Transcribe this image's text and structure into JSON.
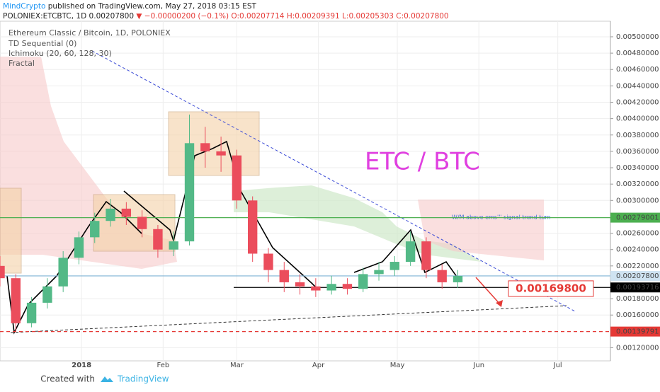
{
  "header": {
    "author": "MindCrypto",
    "published": "published on TradingView.com, May 27, 2018 03:15 EST",
    "symbol": "POLONIEX:ETCBTC, 1D",
    "price": "0.00207800",
    "change": "▼ −0.00000200 (−0.1%)",
    "ohlc": [
      "O:0.00207714",
      "H:0.00209391",
      "L:0.00205303",
      "C:0.00207800"
    ]
  },
  "footer": {
    "created": "Created with",
    "brand": "TradingView"
  },
  "chart_data": {
    "type": "candlestick",
    "legend": [
      "Ethereum Classic / Bitcoin, 1D, POLONIEX",
      "TD Sequential (0)",
      "Ichimoku (20, 60, 128, 30)",
      "Fractal"
    ],
    "annotations": [
      "ETC / BTC",
      "W/M above ems''' signal trend turn"
    ],
    "target": {
      "value": 0.001698,
      "label": "0.00169800"
    },
    "x": [
      0,
      6,
      12,
      18,
      24,
      30,
      36,
      42,
      48,
      54,
      60,
      66,
      72,
      78,
      84,
      90,
      96,
      102,
      108,
      114,
      120,
      126,
      132,
      138,
      144,
      150,
      156,
      162,
      168,
      174
    ],
    "open": [
      0.0022,
      0.00205,
      0.0015,
      0.00175,
      0.00195,
      0.0023,
      0.00255,
      0.00275,
      0.0029,
      0.0028,
      0.00265,
      0.0024,
      0.0025,
      0.0037,
      0.0036,
      0.00355,
      0.003,
      0.00235,
      0.00215,
      0.002,
      0.00195,
      0.0019,
      0.00198,
      0.00192,
      0.0021,
      0.00215,
      0.00225,
      0.0025,
      0.00215,
      0.002
    ],
    "high": [
      0.00232,
      0.0021,
      0.00182,
      0.00205,
      0.00238,
      0.00262,
      0.00285,
      0.00302,
      0.00298,
      0.00288,
      0.0027,
      0.00262,
      0.00405,
      0.0039,
      0.00378,
      0.00362,
      0.00305,
      0.00242,
      0.00225,
      0.0021,
      0.00205,
      0.00208,
      0.00205,
      0.00218,
      0.00225,
      0.00232,
      0.00262,
      0.00255,
      0.00222,
      0.00215
    ],
    "low": [
      0.00195,
      0.0014,
      0.00145,
      0.00168,
      0.00188,
      0.00222,
      0.00248,
      0.00268,
      0.0027,
      0.00255,
      0.0023,
      0.00232,
      0.00245,
      0.0034,
      0.00335,
      0.0029,
      0.00225,
      0.002,
      0.00188,
      0.00185,
      0.00182,
      0.00185,
      0.00185,
      0.00188,
      0.00202,
      0.00208,
      0.0022,
      0.00205,
      0.00192,
      0.00193
    ],
    "close": [
      0.00205,
      0.0015,
      0.00175,
      0.00195,
      0.0023,
      0.00255,
      0.00275,
      0.0029,
      0.0028,
      0.00265,
      0.0024,
      0.0025,
      0.0037,
      0.0036,
      0.00355,
      0.003,
      0.00235,
      0.00215,
      0.002,
      0.00195,
      0.0019,
      0.00198,
      0.00192,
      0.0021,
      0.00215,
      0.00225,
      0.0025,
      0.00215,
      0.002,
      0.002078
    ],
    "up_color": "#53b987",
    "down_color": "#eb4d5c",
    "xlim": [
      0,
      232
    ],
    "xticks": [
      {
        "value": 31,
        "label": "2018"
      },
      {
        "value": 62,
        "label": "Feb"
      },
      {
        "value": 90,
        "label": "Mar"
      },
      {
        "value": 121,
        "label": "Apr"
      },
      {
        "value": 151,
        "label": "May"
      },
      {
        "value": 182,
        "label": "Jun"
      },
      {
        "value": 212,
        "label": "Jul"
      }
    ],
    "ylim": [
      0.00104,
      0.00519
    ],
    "yticks": [
      {
        "value": 0.005,
        "label": "0.00500000"
      },
      {
        "value": 0.0048,
        "label": "0.00480000"
      },
      {
        "value": 0.0046,
        "label": "0.00460000"
      },
      {
        "value": 0.0044,
        "label": "0.00440000"
      },
      {
        "value": 0.0042,
        "label": "0.00420000"
      },
      {
        "value": 0.004,
        "label": "0.00400000"
      },
      {
        "value": 0.0038,
        "label": "0.00380000"
      },
      {
        "value": 0.0036,
        "label": "0.00360000"
      },
      {
        "value": 0.0034,
        "label": "0.00340000"
      },
      {
        "value": 0.0032,
        "label": "0.00320000"
      },
      {
        "value": 0.003,
        "label": "0.00300000"
      },
      {
        "value": 0.0026,
        "label": "0.00260000"
      },
      {
        "value": 0.0024,
        "label": "0.00240000"
      },
      {
        "value": 0.0022,
        "label": "0.00220000"
      },
      {
        "value": 0.0018,
        "label": "0.00180000"
      },
      {
        "value": 0.0016,
        "label": "0.00160000"
      },
      {
        "value": 0.0012,
        "label": "0.00120000"
      }
    ],
    "levels": [
      {
        "value": 0.00279001,
        "label": "0.00279001",
        "color": "#4caf50"
      },
      {
        "value": 0.002078,
        "label": "0.00207800",
        "color": "#cfe3f1"
      },
      {
        "value": 0.00193716,
        "label": "0.00193716",
        "color": "#000000"
      },
      {
        "value": 0.00139791,
        "label": "0.00139791",
        "color": "#e53935"
      }
    ],
    "grid": true
  }
}
